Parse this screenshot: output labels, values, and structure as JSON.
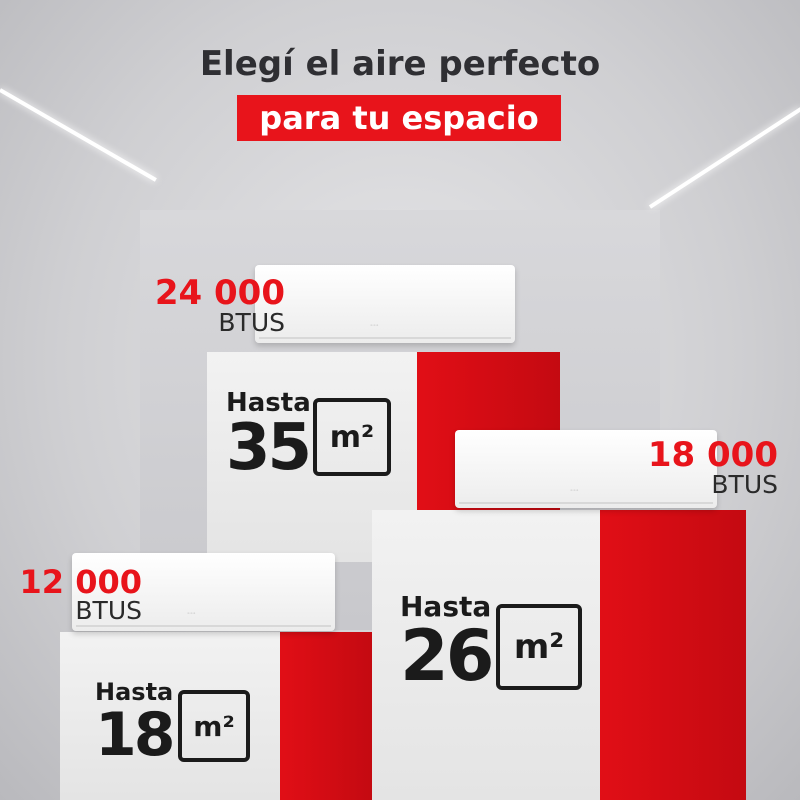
{
  "headline": {
    "line1": "Elegí el aire perfecto",
    "line2": "para tu espacio"
  },
  "colors": {
    "accent": "#e8141b",
    "text": "#2f2f33",
    "background": "#d4d4d7"
  },
  "products": [
    {
      "btu_value": "24 000",
      "btu_unit": "BTUS",
      "area_prefix": "Hasta",
      "area_value": "35",
      "area_unit": "m²"
    },
    {
      "btu_value": "18 000",
      "btu_unit": "BTUS",
      "area_prefix": "Hasta",
      "area_value": "26",
      "area_unit": "m²"
    },
    {
      "btu_value": "12 000",
      "btu_unit": "BTUS",
      "area_prefix": "Hasta",
      "area_value": "18",
      "area_unit": "m²"
    }
  ]
}
